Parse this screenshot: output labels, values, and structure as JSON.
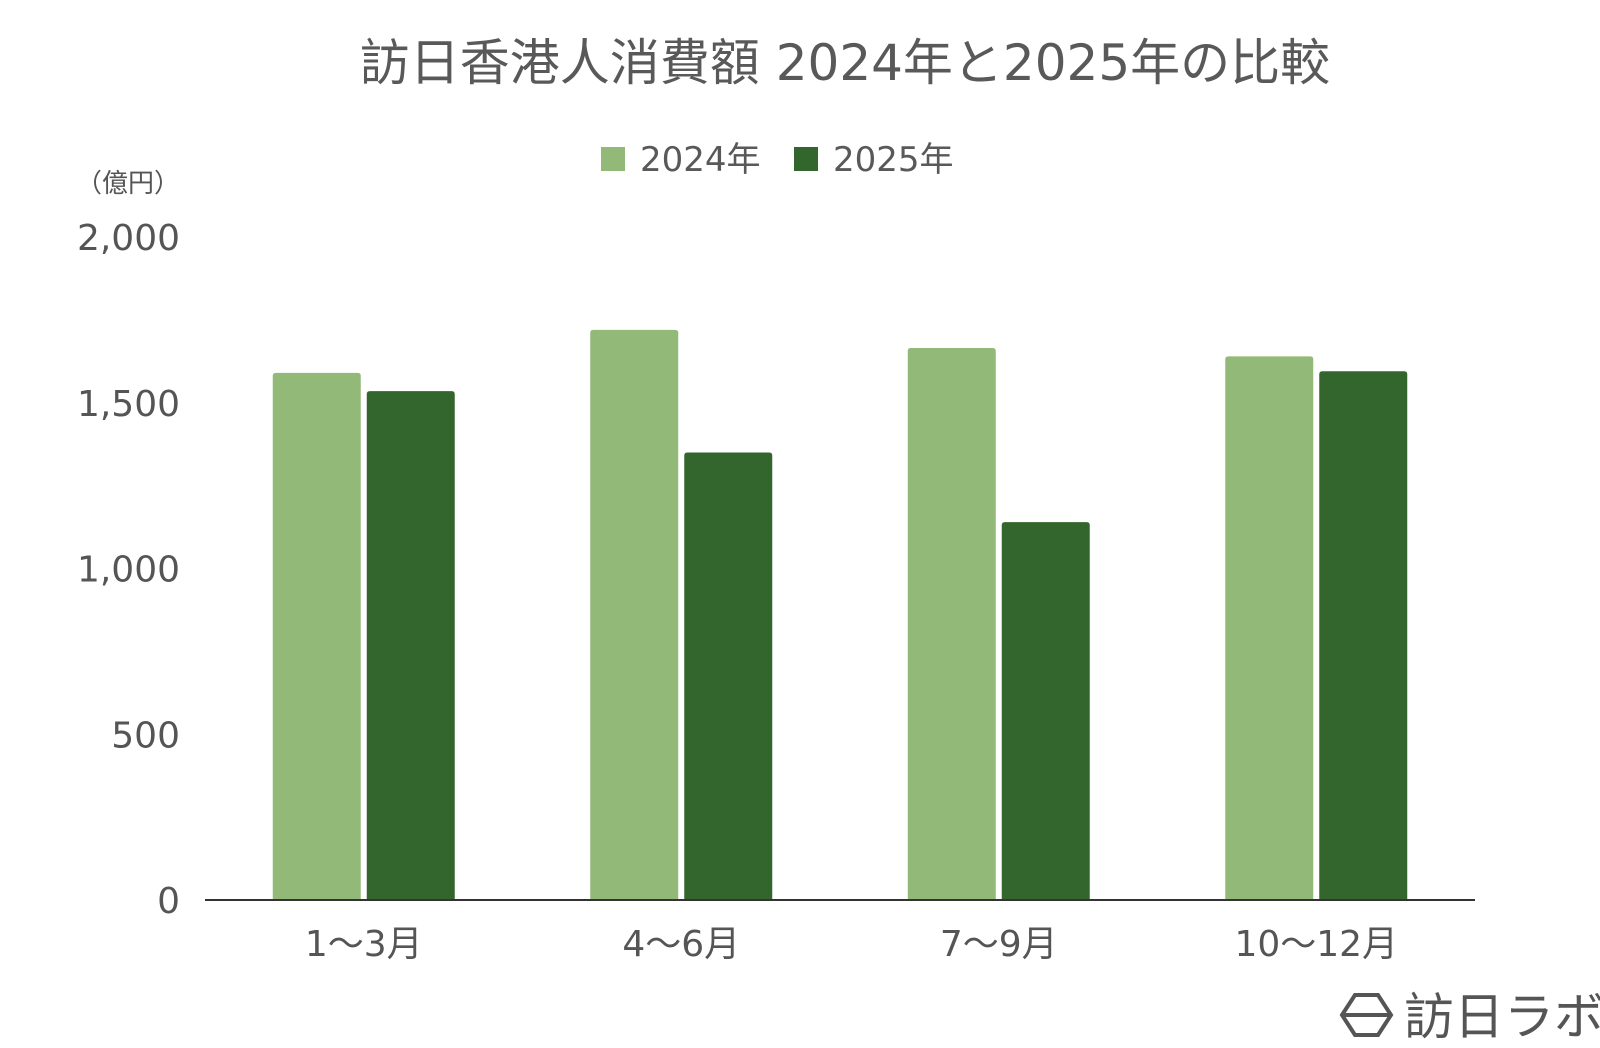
{
  "chart_data": {
    "type": "bar",
    "title": "訪日香港人消費額 2024年と2025年の比較",
    "unit_label": "（億円）",
    "categories": [
      "1〜3月",
      "4〜6月",
      "7〜9月",
      "10〜12月"
    ],
    "series": [
      {
        "name": "2024年",
        "color": "#93b978",
        "values": [
          1590,
          1720,
          1665,
          1640
        ]
      },
      {
        "name": "2025年",
        "color": "#33662d",
        "values": [
          1535,
          1350,
          1140,
          1595
        ]
      }
    ],
    "ylim": [
      0,
      2000
    ],
    "yticks": [
      0,
      500,
      1000,
      1500,
      2000
    ],
    "ytick_labels": [
      "0",
      "500",
      "1,000",
      "1,500",
      "2,000"
    ],
    "grid": false,
    "legend_position": "top-center"
  },
  "brand": {
    "logo_text": "訪日ラボ",
    "logo_icon": "hexagon-logo-icon"
  }
}
